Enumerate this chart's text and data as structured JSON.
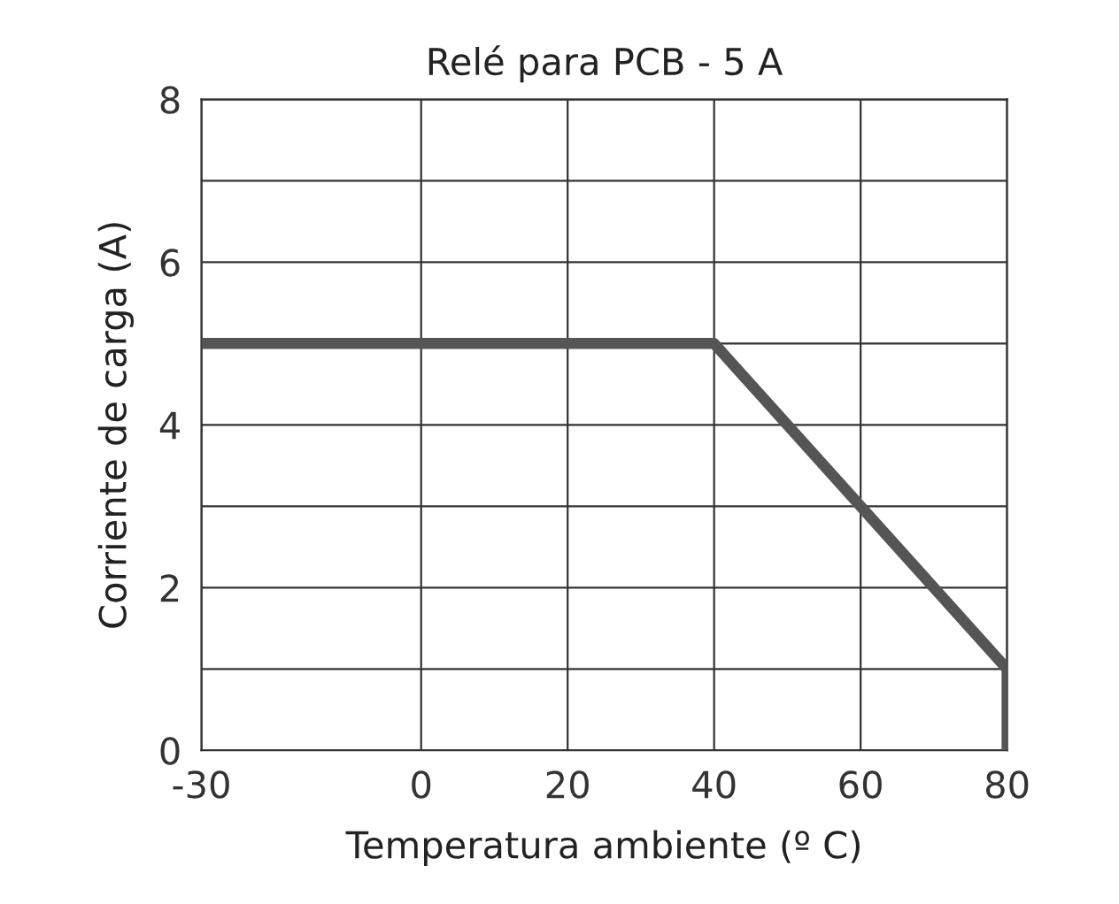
{
  "chart_data": {
    "type": "line",
    "title": "Relé para PCB - 5 A",
    "xlabel": "Temperatura ambiente (º C)",
    "ylabel": "Corriente de carga (A)",
    "series": [
      {
        "color": "#555555",
        "x": [
          -30,
          40,
          80,
          80
        ],
        "values": [
          5,
          5,
          1,
          0
        ]
      }
    ],
    "xlim": [
      -30,
      80
    ],
    "xticks": [
      -30,
      0,
      20,
      40,
      60,
      80
    ],
    "ylim": [
      0,
      8
    ],
    "yticks": [
      0,
      {
        "value": 1,
        "label": null
      },
      2,
      {
        "value": 3,
        "label": null
      },
      4,
      {
        "value": 5,
        "label": null
      },
      6,
      {
        "value": 7,
        "label": null
      },
      8
    ],
    "grid": true,
    "marker": "none",
    "line_style": "solid"
  }
}
